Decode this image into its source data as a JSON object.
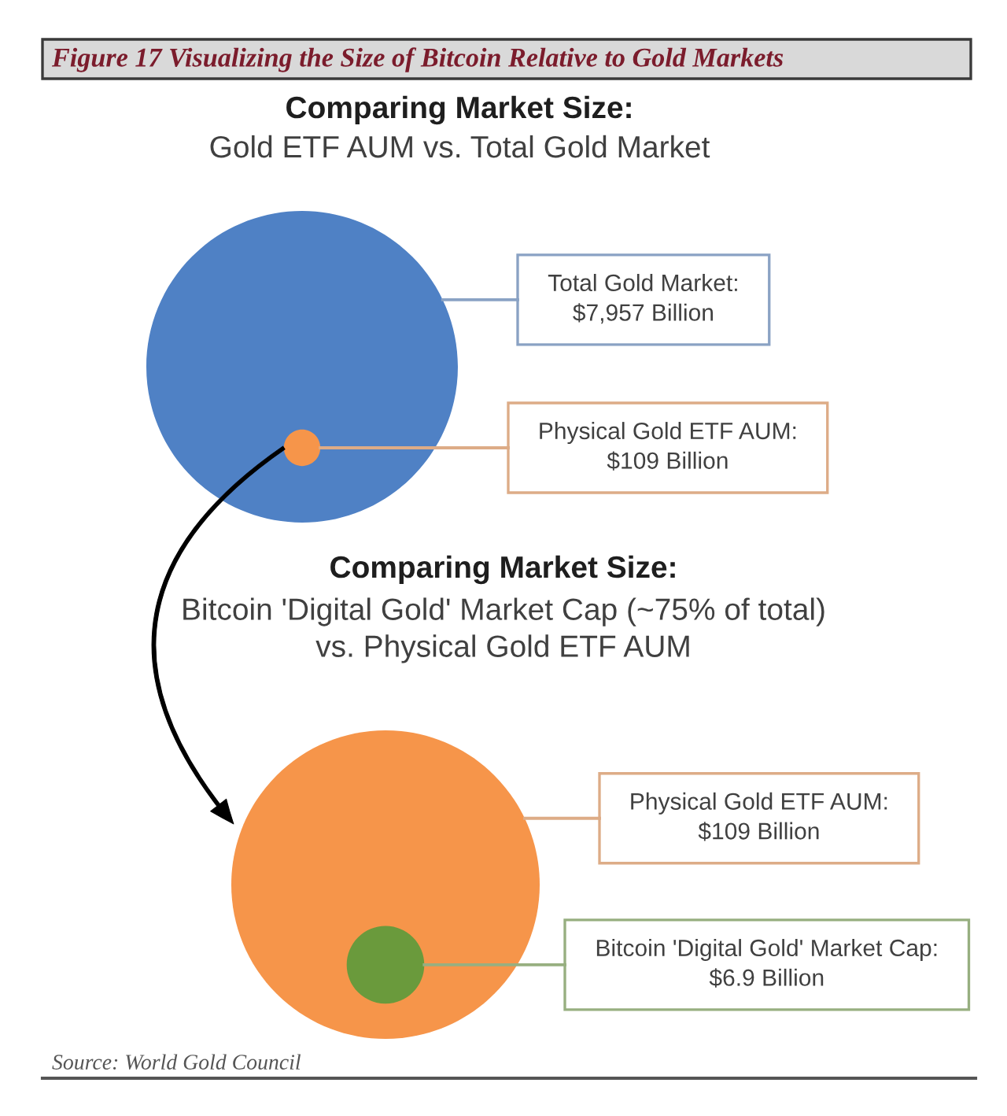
{
  "chart_data": [
    {
      "type": "other",
      "title": "Comparing Market Size:",
      "subtitle": "Gold ETF AUM vs. Total Gold Market",
      "values": [
        7957,
        109
      ],
      "value_labels": [
        "Total Gold Market:\n$7,957 Billion",
        "Physical Gold ETF AUM:\n$109 Billion"
      ],
      "colors": [
        "#4f81c5",
        "#f6954a"
      ],
      "annotations": [
        "Figure 17 Visualizing the Size of Bitcoin Relative to Gold Markets"
      ]
    },
    {
      "type": "other",
      "title": "Comparing Market Size:",
      "subtitle": "Bitcoin 'Digital Gold' Market Cap (~75% of total)\nvs. Physical Gold ETF AUM",
      "values": [
        109,
        6.9
      ],
      "value_labels": [
        "Physical Gold ETF AUM:\n$109 Billion",
        "Bitcoin 'Digital Gold' Market Cap:\n$6.9 Billion"
      ],
      "colors": [
        "#f6954a",
        "#6a9a3c"
      ],
      "annotations": [
        "Source: World Gold Council"
      ]
    }
  ]
}
